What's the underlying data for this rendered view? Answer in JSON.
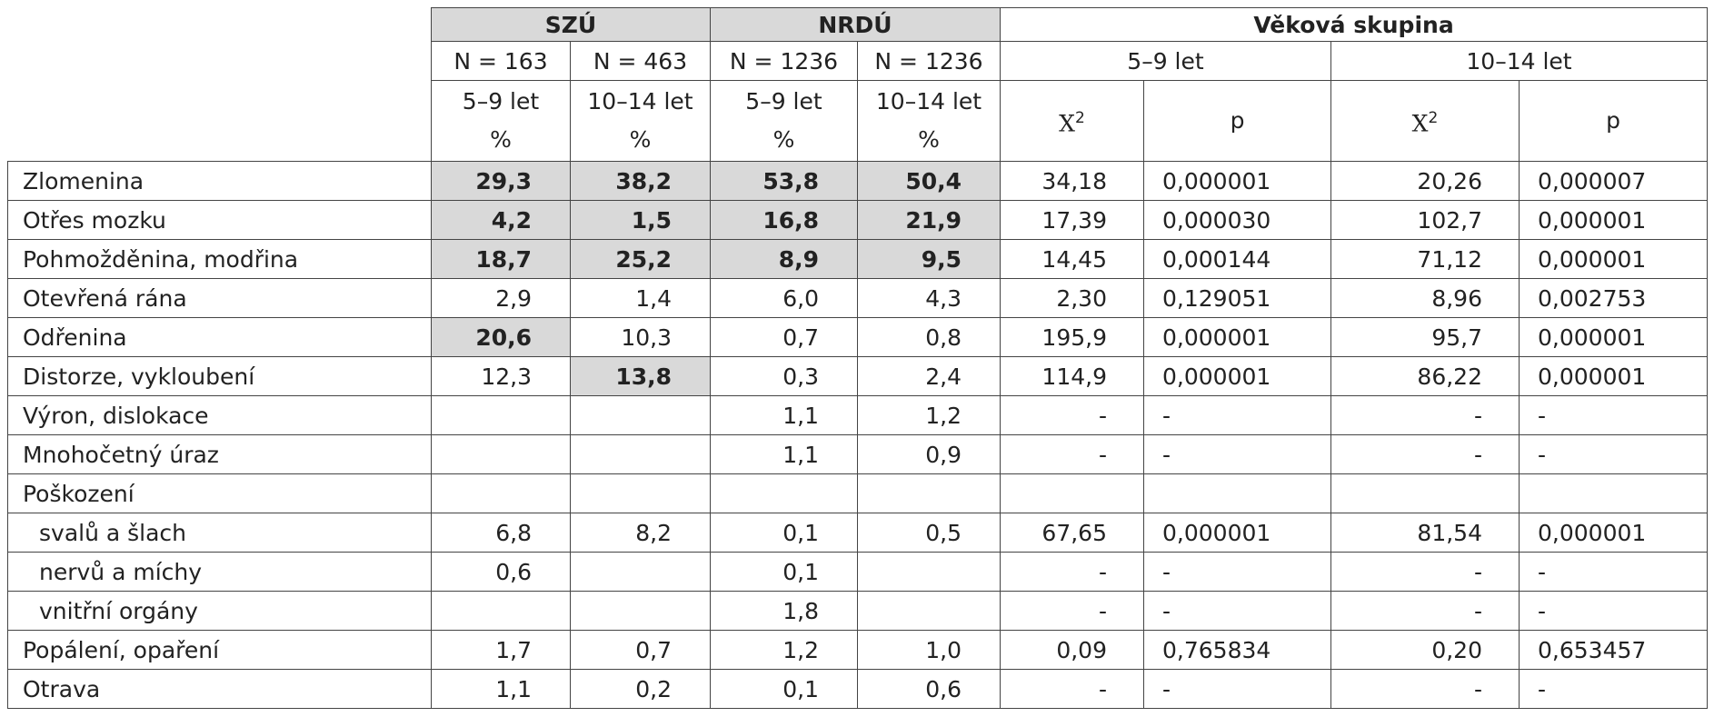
{
  "header": {
    "groups": [
      {
        "label": "SZÚ",
        "shaded": true
      },
      {
        "label": "NRDÚ",
        "shaded": true
      },
      {
        "label": "Věková skupina"
      }
    ],
    "n": [
      "N = 163",
      "N = 463",
      "N = 1236",
      "N = 1236"
    ],
    "ages": [
      "5–9 let",
      "10–14 let"
    ],
    "pct_cols": [
      {
        "age": "5–9 let",
        "unit": "%"
      },
      {
        "age": "10–14 let",
        "unit": "%"
      },
      {
        "age": "5–9 let",
        "unit": "%"
      },
      {
        "age": "10–14 let",
        "unit": "%"
      }
    ],
    "stat_cols": [
      {
        "symbol": "X",
        "sup": "2"
      },
      {
        "symbol": "p"
      }
    ]
  },
  "rows": [
    {
      "label": "Zlomenina",
      "pct": [
        "29,3",
        "38,2",
        "53,8",
        "50,4"
      ],
      "highlight": [
        0,
        1,
        2,
        3
      ],
      "stats": [
        "34,18",
        "0,000001",
        "20,26",
        "0,000007"
      ]
    },
    {
      "label": "Otřes mozku",
      "pct": [
        "4,2",
        "1,5",
        "16,8",
        "21,9"
      ],
      "highlight": [
        0,
        1,
        2,
        3
      ],
      "stats": [
        "17,39",
        "0,000030",
        "102,7",
        "0,000001"
      ]
    },
    {
      "label": "Pohmožděnina, modřina",
      "pct": [
        "18,7",
        "25,2",
        "8,9",
        "9,5"
      ],
      "highlight": [
        0,
        1,
        2,
        3
      ],
      "stats": [
        "14,45",
        "0,000144",
        "71,12",
        "0,000001"
      ]
    },
    {
      "label": "Otevřená rána",
      "pct": [
        "2,9",
        "1,4",
        "6,0",
        "4,3"
      ],
      "stats": [
        "2,30",
        "0,129051",
        "8,96",
        "0,002753"
      ]
    },
    {
      "label": "Odřenina",
      "pct": [
        "20,6",
        "10,3",
        "0,7",
        "0,8"
      ],
      "highlight": [
        0
      ],
      "stats": [
        "195,9",
        "0,000001",
        "95,7",
        "0,000001"
      ]
    },
    {
      "label": "Distorze, vykloubení",
      "pct": [
        "12,3",
        "13,8",
        "0,3",
        "2,4"
      ],
      "highlight": [
        1
      ],
      "stats": [
        "114,9",
        "0,000001",
        "86,22",
        "0,000001"
      ]
    },
    {
      "label": "Výron, dislokace",
      "pct": [
        null,
        null,
        "1,1",
        "1,2"
      ],
      "stats": [
        "-",
        "-",
        "-",
        "-"
      ]
    },
    {
      "label": "Mnohočetný úraz",
      "pct": [
        null,
        null,
        "1,1",
        "0,9"
      ],
      "stats": [
        "-",
        "-",
        "-",
        "-"
      ]
    },
    {
      "label": "Poškození",
      "pct": [
        null,
        null,
        null,
        null
      ],
      "stats": [
        null,
        null,
        null,
        null
      ]
    },
    {
      "label": "svalů a šlach",
      "sub": true,
      "pct": [
        "6,8",
        "8,2",
        "0,1",
        "0,5"
      ],
      "stats": [
        "67,65",
        "0,000001",
        "81,54",
        "0,000001"
      ]
    },
    {
      "label": "nervů a míchy",
      "sub": true,
      "pct": [
        "0,6",
        null,
        "0,1",
        null
      ],
      "stats": [
        "-",
        "-",
        "-",
        "-"
      ]
    },
    {
      "label": "vnitřní orgány",
      "sub": true,
      "pct": [
        null,
        null,
        "1,8",
        null
      ],
      "stats": [
        "-",
        "-",
        "-",
        "-"
      ]
    },
    {
      "label": "Popálení, opaření",
      "pct": [
        "1,7",
        "0,7",
        "1,2",
        "1,0"
      ],
      "stats": [
        "0,09",
        "0,765834",
        "0,20",
        "0,653457"
      ]
    },
    {
      "label": "Otrava",
      "pct": [
        "1,1",
        "0,2",
        "0,1",
        "0,6"
      ],
      "stats": [
        "-",
        "-",
        "-",
        "-"
      ]
    }
  ]
}
